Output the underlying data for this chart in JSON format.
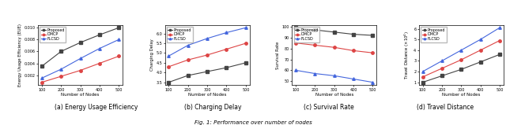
{
  "x": [
    100,
    200,
    300,
    400,
    500
  ],
  "subplot_a": {
    "ylabel": "Energy Usage Efficiency (EUE)",
    "xlabel": "Number of Nodes",
    "Proposed": [
      0.0035,
      0.006,
      0.0075,
      0.0088,
      0.01
    ],
    "DMCP": [
      0.0008,
      0.0018,
      0.0028,
      0.004,
      0.0052
    ],
    "FLCSD": [
      0.0015,
      0.003,
      0.0048,
      0.0065,
      0.008
    ]
  },
  "subplot_b": {
    "ylabel": "Charging Delay",
    "xlabel": "Number of Nodes",
    "Proposed": [
      3.5,
      3.85,
      4.05,
      4.25,
      4.5
    ],
    "DMCP": [
      4.3,
      4.65,
      4.9,
      5.2,
      5.5
    ],
    "FLCSD": [
      4.85,
      5.4,
      5.75,
      6.05,
      6.3
    ]
  },
  "subplot_c": {
    "ylabel": "Survival Rate",
    "xlabel": "Number of Nodes",
    "Proposed": [
      99,
      97,
      95,
      93,
      92
    ],
    "DMCP": [
      85,
      83,
      81,
      78,
      76
    ],
    "FLCSD": [
      60,
      57,
      55,
      52,
      49
    ]
  },
  "subplot_d": {
    "ylabel": "Travel Distance ($\\times10^4$)",
    "xlabel": "Number of Nodes",
    "Proposed": [
      1.0,
      1.6,
      2.2,
      2.9,
      3.6
    ],
    "DMCP": [
      1.5,
      2.3,
      3.1,
      4.0,
      4.9
    ],
    "FLCSD": [
      2.0,
      3.0,
      4.0,
      5.0,
      6.1
    ]
  },
  "colors": {
    "Proposed": "#444444",
    "DMCP": "#dd4444",
    "FLCSD": "#4466dd"
  },
  "marker": {
    "Proposed": "s",
    "DMCP": "o",
    "FLCSD": "^"
  },
  "subtitles": [
    "(a) Energy Usage Efficiency",
    "(b) Charging Delay",
    "(c) Survival Rate",
    "(d) Travel Distance"
  ],
  "fig_caption": "Fig. 1: Performance over number of nodes"
}
